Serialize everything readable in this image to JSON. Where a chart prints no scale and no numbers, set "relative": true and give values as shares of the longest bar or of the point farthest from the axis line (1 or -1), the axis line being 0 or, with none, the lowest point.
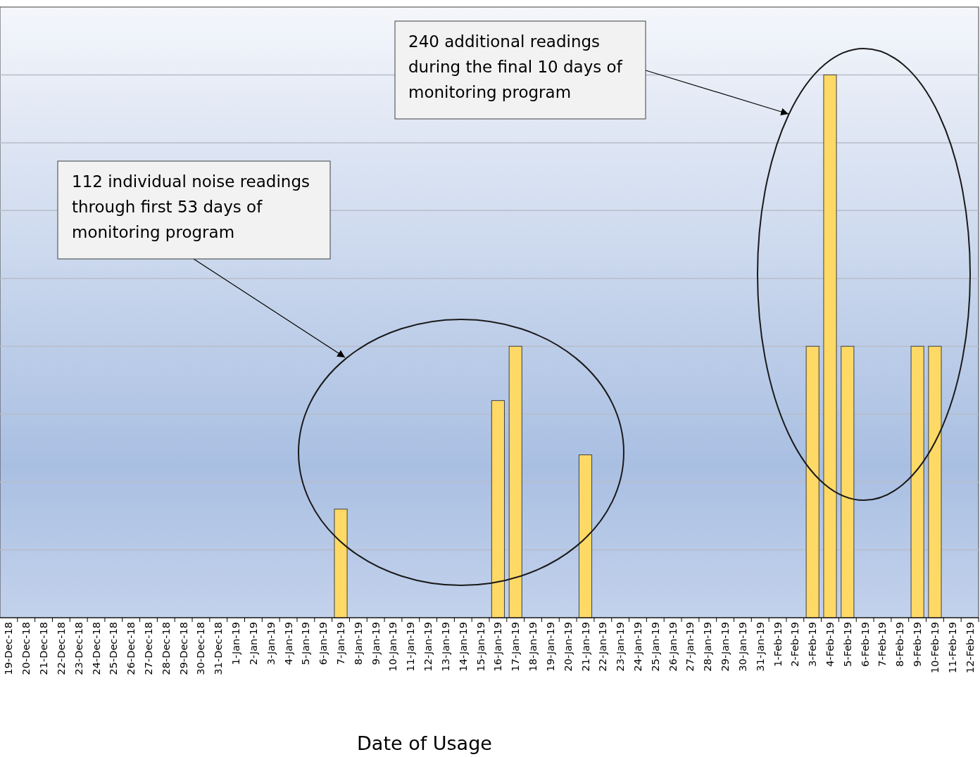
{
  "chart_data": {
    "type": "bar",
    "relative": true,
    "xlabel": "Date of Usage",
    "categories": [
      "19-Dec-18",
      "20-Dec-18",
      "21-Dec-18",
      "22-Dec-18",
      "23-Dec-18",
      "24-Dec-18",
      "25-Dec-18",
      "26-Dec-18",
      "27-Dec-18",
      "28-Dec-18",
      "29-Dec-18",
      "30-Dec-18",
      "31-Dec-18",
      "1-Jan-19",
      "2-Jan-19",
      "3-Jan-19",
      "4-Jan-19",
      "5-Jan-19",
      "6-Jan-19",
      "7-Jan-19",
      "8-Jan-19",
      "9-Jan-19",
      "10-Jan-19",
      "11-Jan-19",
      "12-Jan-19",
      "13-Jan-19",
      "14-Jan-19",
      "15-Jan-19",
      "16-Jan-19",
      "17-Jan-19",
      "18-Jan-19",
      "19-Jan-19",
      "20-Jan-19",
      "21-Jan-19",
      "22-Jan-19",
      "23-Jan-19",
      "24-Jan-19",
      "25-Jan-19",
      "26-Jan-19",
      "27-Jan-19",
      "28-Jan-19",
      "29-Jan-19",
      "30-Jan-19",
      "31-Jan-19",
      "1-Feb-19",
      "2-Feb-19",
      "3-Feb-19",
      "4-Feb-19",
      "5-Feb-19",
      "6-Feb-19",
      "7-Feb-19",
      "8-Feb-19",
      "9-Feb-19",
      "10-Feb-19",
      "11-Feb-19",
      "12-Feb-19"
    ],
    "values": [
      null,
      null,
      null,
      null,
      null,
      null,
      null,
      null,
      null,
      null,
      null,
      null,
      null,
      null,
      null,
      null,
      null,
      null,
      null,
      0.2,
      null,
      null,
      null,
      null,
      null,
      null,
      null,
      null,
      0.4,
      0.5,
      null,
      null,
      null,
      0.3,
      null,
      null,
      null,
      null,
      null,
      null,
      null,
      null,
      null,
      null,
      null,
      null,
      0.5,
      1,
      0.5,
      null,
      null,
      null,
      0.5,
      0.5,
      null,
      null
    ],
    "color": "#ffd966",
    "annotations": [
      "112 individual noise readings\nthrough first 53 days of\nmonitoring program",
      "240 additional readings\nduring the final 10 days of\nmonitoring program"
    ]
  }
}
